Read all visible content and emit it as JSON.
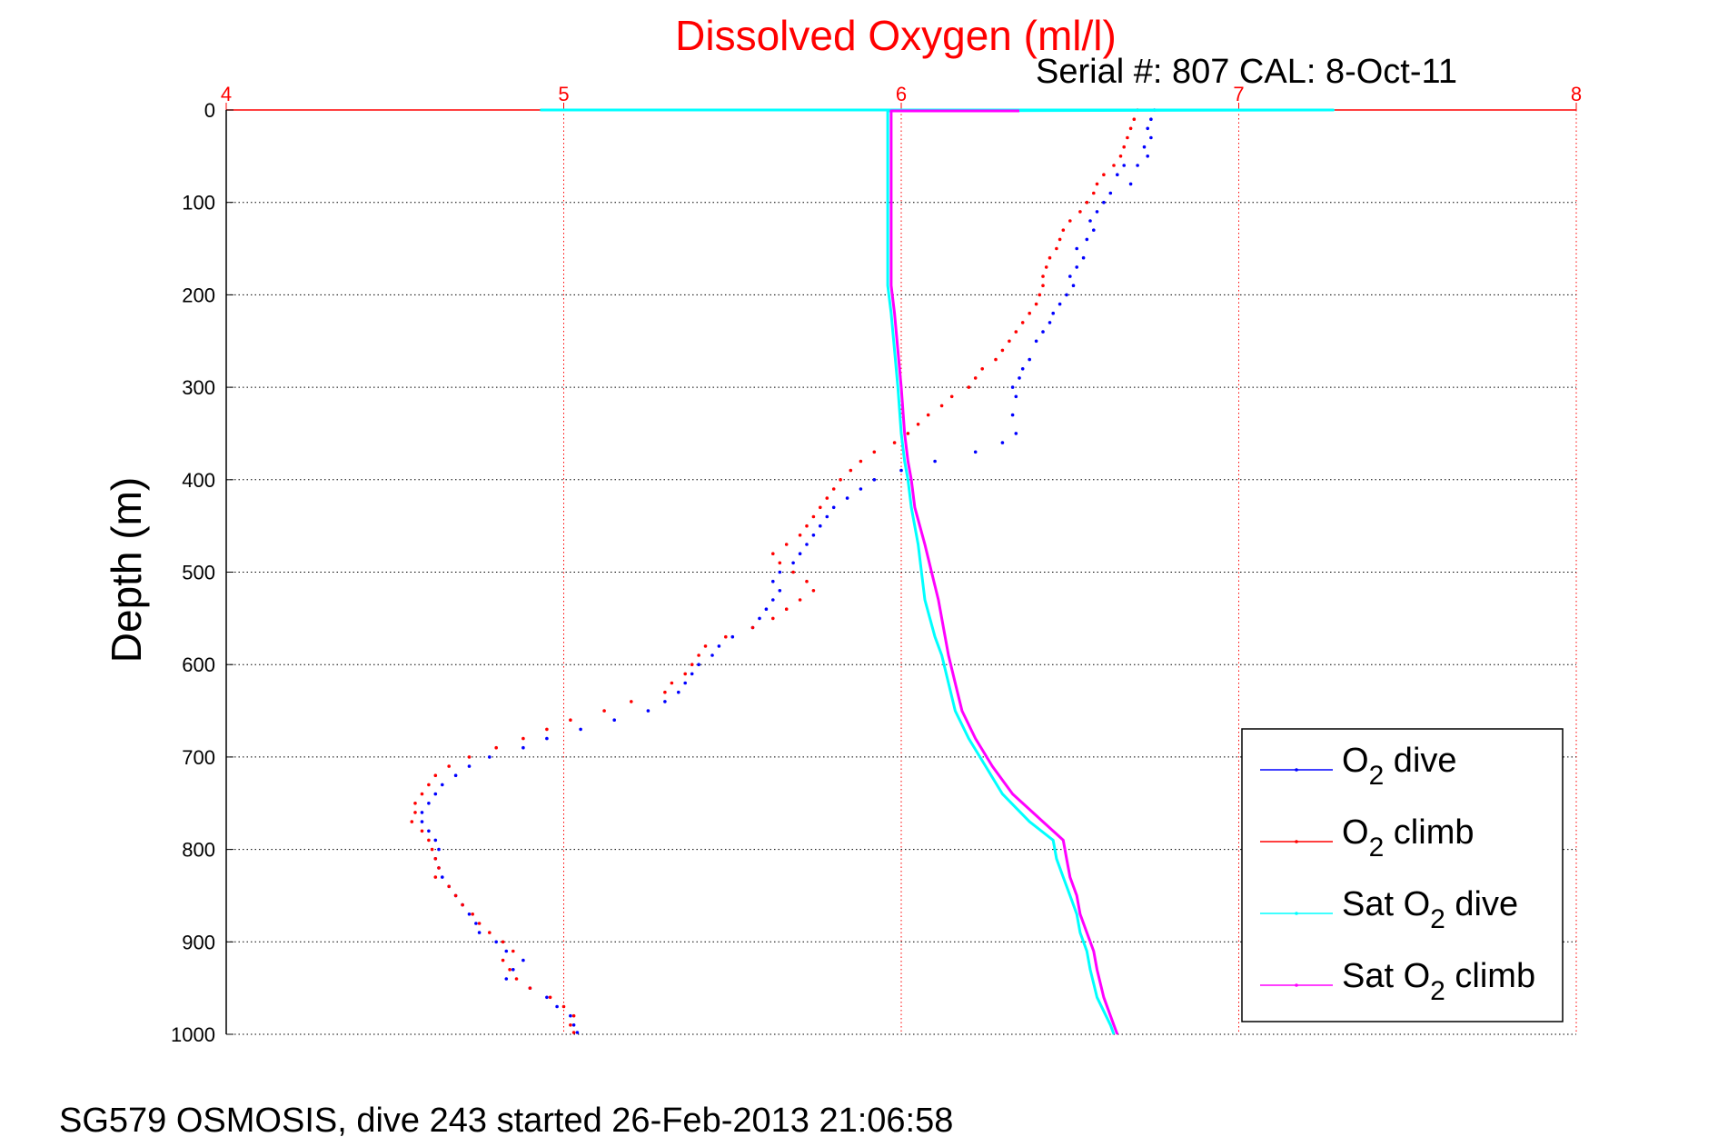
{
  "chart_data": {
    "type": "scatter",
    "title": "Dissolved Oxygen (ml/l)",
    "subtitle": "Serial #: 807  CAL: 8-Oct-11",
    "ylabel": "Depth (m)",
    "xlim": [
      4,
      8
    ],
    "ylim": [
      0,
      1000
    ],
    "y_reversed": true,
    "x_axis_position": "top",
    "grid": true,
    "legend_position": "bottom-right",
    "x_ticks": [
      "4",
      "5",
      "6",
      "7",
      "8"
    ],
    "y_ticks": [
      "0",
      "100",
      "200",
      "300",
      "400",
      "500",
      "600",
      "700",
      "800",
      "900",
      "1000"
    ],
    "colors": {
      "title": "#ff0000",
      "x_ticks": "#ff0000",
      "grid": "#000000",
      "x_grid": "#ff0000"
    },
    "series": [
      {
        "name": "O2 dive",
        "legend_main": "O",
        "legend_sub": "2",
        "legend_tail": " dive",
        "color": "#0000ff",
        "style": "dots",
        "points": [
          [
            6.75,
            0
          ],
          [
            6.74,
            10
          ],
          [
            6.73,
            20
          ],
          [
            6.74,
            30
          ],
          [
            6.72,
            40
          ],
          [
            6.73,
            50
          ],
          [
            6.7,
            60
          ],
          [
            6.66,
            60
          ],
          [
            6.64,
            70
          ],
          [
            6.68,
            80
          ],
          [
            6.62,
            90
          ],
          [
            6.6,
            100
          ],
          [
            6.58,
            110
          ],
          [
            6.56,
            120
          ],
          [
            6.57,
            130
          ],
          [
            6.55,
            140
          ],
          [
            6.52,
            150
          ],
          [
            6.54,
            160
          ],
          [
            6.52,
            170
          ],
          [
            6.5,
            180
          ],
          [
            6.51,
            190
          ],
          [
            6.49,
            200
          ],
          [
            6.47,
            210
          ],
          [
            6.45,
            220
          ],
          [
            6.44,
            230
          ],
          [
            6.42,
            240
          ],
          [
            6.4,
            250
          ],
          [
            6.38,
            270
          ],
          [
            6.36,
            280
          ],
          [
            6.35,
            290
          ],
          [
            6.33,
            300
          ],
          [
            6.34,
            310
          ],
          [
            6.33,
            330
          ],
          [
            6.34,
            350
          ],
          [
            6.3,
            360
          ],
          [
            6.22,
            370
          ],
          [
            6.1,
            380
          ],
          [
            6.0,
            390
          ],
          [
            5.92,
            400
          ],
          [
            5.88,
            410
          ],
          [
            5.84,
            420
          ],
          [
            5.8,
            430
          ],
          [
            5.78,
            440
          ],
          [
            5.76,
            450
          ],
          [
            5.74,
            460
          ],
          [
            5.72,
            470
          ],
          [
            5.7,
            480
          ],
          [
            5.68,
            490
          ],
          [
            5.64,
            500
          ],
          [
            5.62,
            510
          ],
          [
            5.64,
            520
          ],
          [
            5.62,
            530
          ],
          [
            5.6,
            540
          ],
          [
            5.58,
            550
          ],
          [
            5.56,
            560
          ],
          [
            5.5,
            570
          ],
          [
            5.46,
            580
          ],
          [
            5.44,
            590
          ],
          [
            5.4,
            600
          ],
          [
            5.38,
            610
          ],
          [
            5.36,
            620
          ],
          [
            5.34,
            630
          ],
          [
            5.3,
            640
          ],
          [
            5.25,
            650
          ],
          [
            5.15,
            660
          ],
          [
            5.05,
            670
          ],
          [
            4.95,
            680
          ],
          [
            4.88,
            690
          ],
          [
            4.78,
            700
          ],
          [
            4.72,
            710
          ],
          [
            4.68,
            720
          ],
          [
            4.64,
            730
          ],
          [
            4.62,
            740
          ],
          [
            4.6,
            750
          ],
          [
            4.58,
            760
          ],
          [
            4.58,
            770
          ],
          [
            4.6,
            780
          ],
          [
            4.62,
            790
          ],
          [
            4.63,
            800
          ],
          [
            4.62,
            810
          ],
          [
            4.63,
            820
          ],
          [
            4.64,
            830
          ],
          [
            4.66,
            840
          ],
          [
            4.68,
            850
          ],
          [
            4.7,
            860
          ],
          [
            4.72,
            870
          ],
          [
            4.74,
            880
          ],
          [
            4.75,
            890
          ],
          [
            4.8,
            900
          ],
          [
            4.83,
            910
          ],
          [
            4.88,
            920
          ],
          [
            4.85,
            930
          ],
          [
            4.83,
            940
          ],
          [
            4.9,
            950
          ],
          [
            4.95,
            960
          ],
          [
            4.98,
            970
          ],
          [
            5.02,
            980
          ],
          [
            5.03,
            990
          ],
          [
            5.04,
            998
          ]
        ]
      },
      {
        "name": "O2 climb",
        "legend_main": "O",
        "legend_sub": "2",
        "legend_tail": " climb",
        "color": "#ff0000",
        "style": "dots",
        "points": [
          [
            6.7,
            0
          ],
          [
            6.69,
            10
          ],
          [
            6.68,
            20
          ],
          [
            6.67,
            30
          ],
          [
            6.66,
            40
          ],
          [
            6.65,
            50
          ],
          [
            6.63,
            60
          ],
          [
            6.6,
            70
          ],
          [
            6.58,
            80
          ],
          [
            6.57,
            90
          ],
          [
            6.55,
            100
          ],
          [
            6.53,
            110
          ],
          [
            6.5,
            120
          ],
          [
            6.48,
            130
          ],
          [
            6.47,
            140
          ],
          [
            6.46,
            150
          ],
          [
            6.44,
            160
          ],
          [
            6.43,
            170
          ],
          [
            6.42,
            180
          ],
          [
            6.42,
            190
          ],
          [
            6.41,
            200
          ],
          [
            6.4,
            210
          ],
          [
            6.38,
            220
          ],
          [
            6.36,
            230
          ],
          [
            6.34,
            240
          ],
          [
            6.32,
            250
          ],
          [
            6.3,
            260
          ],
          [
            6.28,
            270
          ],
          [
            6.24,
            280
          ],
          [
            6.22,
            290
          ],
          [
            6.2,
            300
          ],
          [
            6.15,
            310
          ],
          [
            6.12,
            320
          ],
          [
            6.08,
            330
          ],
          [
            6.05,
            340
          ],
          [
            6.02,
            350
          ],
          [
            5.98,
            360
          ],
          [
            5.92,
            370
          ],
          [
            5.88,
            380
          ],
          [
            5.85,
            390
          ],
          [
            5.82,
            400
          ],
          [
            5.8,
            410
          ],
          [
            5.78,
            420
          ],
          [
            5.76,
            430
          ],
          [
            5.74,
            440
          ],
          [
            5.72,
            450
          ],
          [
            5.7,
            460
          ],
          [
            5.66,
            470
          ],
          [
            5.62,
            480
          ],
          [
            5.64,
            490
          ],
          [
            5.68,
            500
          ],
          [
            5.72,
            510
          ],
          [
            5.74,
            520
          ],
          [
            5.7,
            530
          ],
          [
            5.66,
            540
          ],
          [
            5.62,
            550
          ],
          [
            5.56,
            560
          ],
          [
            5.48,
            570
          ],
          [
            5.42,
            580
          ],
          [
            5.4,
            590
          ],
          [
            5.38,
            600
          ],
          [
            5.36,
            610
          ],
          [
            5.32,
            620
          ],
          [
            5.3,
            630
          ],
          [
            5.2,
            640
          ],
          [
            5.12,
            650
          ],
          [
            5.02,
            660
          ],
          [
            4.95,
            670
          ],
          [
            4.88,
            680
          ],
          [
            4.8,
            690
          ],
          [
            4.72,
            700
          ],
          [
            4.66,
            710
          ],
          [
            4.62,
            720
          ],
          [
            4.6,
            730
          ],
          [
            4.58,
            740
          ],
          [
            4.56,
            750
          ],
          [
            4.56,
            760
          ],
          [
            4.55,
            770
          ],
          [
            4.58,
            780
          ],
          [
            4.6,
            790
          ],
          [
            4.61,
            800
          ],
          [
            4.62,
            810
          ],
          [
            4.63,
            820
          ],
          [
            4.62,
            830
          ],
          [
            4.66,
            840
          ],
          [
            4.68,
            850
          ],
          [
            4.7,
            860
          ],
          [
            4.73,
            870
          ],
          [
            4.75,
            880
          ],
          [
            4.78,
            890
          ],
          [
            4.82,
            900
          ],
          [
            4.85,
            910
          ],
          [
            4.82,
            920
          ],
          [
            4.84,
            930
          ],
          [
            4.86,
            940
          ],
          [
            4.9,
            950
          ],
          [
            4.96,
            960
          ],
          [
            5.0,
            970
          ],
          [
            5.03,
            980
          ],
          [
            5.02,
            990
          ],
          [
            5.03,
            998
          ]
        ]
      },
      {
        "name": "Sat O2 dive",
        "legend_main": "Sat O",
        "legend_sub": "2",
        "legend_tail": " dive",
        "color": "#00ffff",
        "style": "line",
        "points": [
          [
            4.93,
            0
          ],
          [
            7.28,
            0
          ],
          [
            5.96,
            1
          ],
          [
            5.96,
            50
          ],
          [
            5.96,
            100
          ],
          [
            5.96,
            150
          ],
          [
            5.96,
            190
          ],
          [
            5.97,
            220
          ],
          [
            5.98,
            260
          ],
          [
            5.99,
            300
          ],
          [
            6.0,
            350
          ],
          [
            6.01,
            380
          ],
          [
            6.02,
            400
          ],
          [
            6.03,
            430
          ],
          [
            6.05,
            470
          ],
          [
            6.06,
            500
          ],
          [
            6.07,
            530
          ],
          [
            6.1,
            570
          ],
          [
            6.12,
            590
          ],
          [
            6.14,
            620
          ],
          [
            6.16,
            650
          ],
          [
            6.2,
            680
          ],
          [
            6.25,
            710
          ],
          [
            6.3,
            740
          ],
          [
            6.38,
            770
          ],
          [
            6.45,
            790
          ],
          [
            6.46,
            810
          ],
          [
            6.48,
            830
          ],
          [
            6.5,
            850
          ],
          [
            6.52,
            870
          ],
          [
            6.53,
            890
          ],
          [
            6.55,
            910
          ],
          [
            6.56,
            930
          ],
          [
            6.58,
            960
          ],
          [
            6.62,
            990
          ],
          [
            6.63,
            1000
          ]
        ]
      },
      {
        "name": "Sat O2 climb",
        "legend_main": "Sat O",
        "legend_sub": "2",
        "legend_tail": " climb",
        "color": "#ff00ff",
        "style": "line",
        "points": [
          [
            6.35,
            1
          ],
          [
            5.97,
            1
          ],
          [
            5.97,
            50
          ],
          [
            5.97,
            100
          ],
          [
            5.97,
            150
          ],
          [
            5.97,
            190
          ],
          [
            5.98,
            220
          ],
          [
            5.99,
            260
          ],
          [
            6.0,
            300
          ],
          [
            6.01,
            350
          ],
          [
            6.02,
            380
          ],
          [
            6.03,
            400
          ],
          [
            6.04,
            430
          ],
          [
            6.07,
            470
          ],
          [
            6.09,
            500
          ],
          [
            6.11,
            530
          ],
          [
            6.13,
            570
          ],
          [
            6.14,
            590
          ],
          [
            6.16,
            620
          ],
          [
            6.18,
            650
          ],
          [
            6.22,
            680
          ],
          [
            6.27,
            710
          ],
          [
            6.33,
            740
          ],
          [
            6.42,
            770
          ],
          [
            6.48,
            790
          ],
          [
            6.49,
            810
          ],
          [
            6.5,
            830
          ],
          [
            6.52,
            850
          ],
          [
            6.53,
            870
          ],
          [
            6.55,
            890
          ],
          [
            6.57,
            910
          ],
          [
            6.58,
            930
          ],
          [
            6.6,
            960
          ],
          [
            6.63,
            990
          ],
          [
            6.64,
            1000
          ]
        ]
      }
    ]
  },
  "footer": {
    "caption": "SG579 OSMOSIS, dive 243 started 26-Feb-2013 21:06:58"
  }
}
